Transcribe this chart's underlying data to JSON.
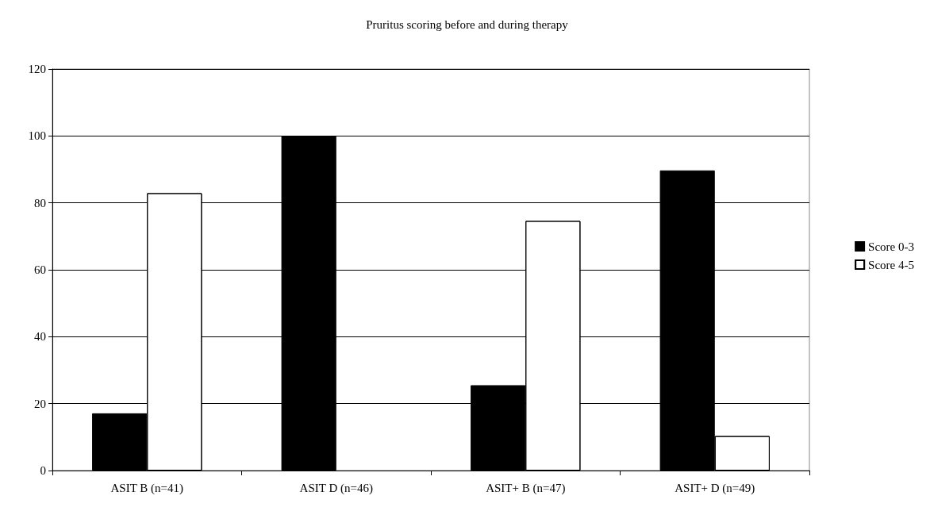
{
  "chart_data": {
    "type": "bar",
    "title": "Pruritus scoring before and during therapy",
    "categories": [
      "ASIT B (n=41)",
      "ASIT D (n=46)",
      "ASIT+ B (n=47)",
      "ASIT+ D (n=49)"
    ],
    "series": [
      {
        "name": "Score 0-3",
        "color": "#000000",
        "values": [
          17.1,
          100,
          25.5,
          89.7
        ]
      },
      {
        "name": "Score 4-5",
        "color": "#ffffff",
        "values": [
          82.9,
          0,
          74.6,
          10.3
        ]
      }
    ],
    "ylim": [
      0,
      120
    ],
    "yticks": [
      0,
      20,
      40,
      60,
      80,
      100,
      120
    ],
    "grid": "y",
    "legend": "right"
  }
}
